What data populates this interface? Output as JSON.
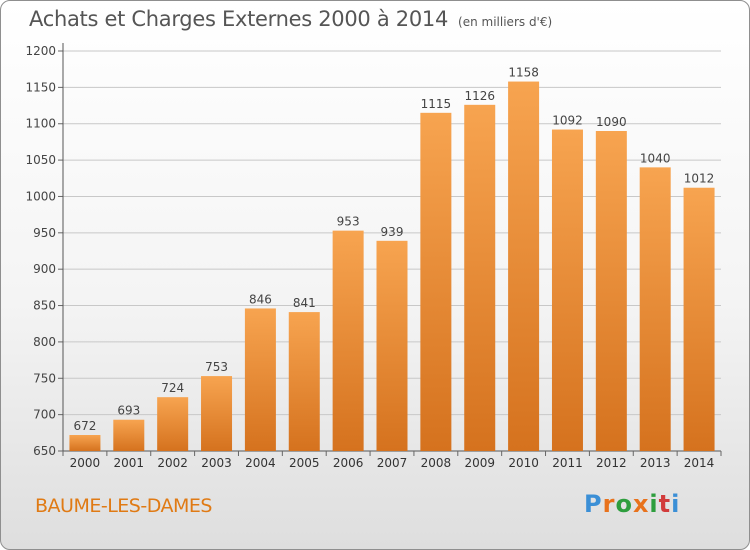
{
  "header": {
    "title": "Achats et Charges Externes 2000 à 2014",
    "subtitle": "(en milliers d'€)"
  },
  "footer": {
    "city": "BAUME-LES-DAMES",
    "logo_letters": [
      "P",
      "r",
      "o",
      "x",
      "i",
      "t",
      "i"
    ],
    "logo_colors": [
      "#3b8fd6",
      "#e8721c",
      "#2e9e3e",
      "#e8721c",
      "#2e9e3e",
      "#d23b3b",
      "#3b8fd6"
    ]
  },
  "chart_data": {
    "type": "bar",
    "categories": [
      "2000",
      "2001",
      "2002",
      "2003",
      "2004",
      "2005",
      "2006",
      "2007",
      "2008",
      "2009",
      "2010",
      "2011",
      "2012",
      "2013",
      "2014"
    ],
    "values": [
      672,
      693,
      724,
      753,
      846,
      841,
      953,
      939,
      1115,
      1126,
      1158,
      1092,
      1090,
      1040,
      1012
    ],
    "ylim": [
      650,
      1200
    ],
    "yticks": [
      650,
      700,
      750,
      800,
      850,
      900,
      950,
      1000,
      1050,
      1100,
      1150,
      1200
    ],
    "grid": true,
    "bar_color_top": "#f7a450",
    "bar_color_bottom": "#d5721e"
  }
}
